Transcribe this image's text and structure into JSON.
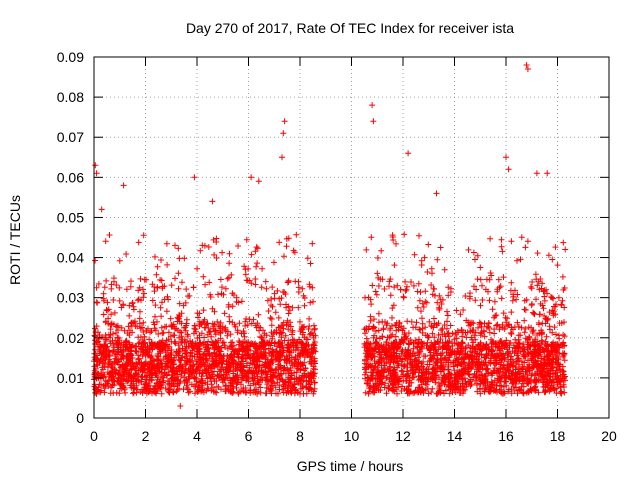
{
  "chart_data": {
    "type": "scatter",
    "title": "Day 270 of 2017, Rate Of TEC Index for receiver ista",
    "xlabel": "GPS time / hours",
    "ylabel": "ROTI / TECUs",
    "xlim": [
      0,
      20
    ],
    "ylim": [
      0,
      0.09
    ],
    "xticks": [
      0,
      2,
      4,
      6,
      8,
      10,
      12,
      14,
      16,
      18,
      20
    ],
    "xtick_labels": [
      "0",
      "2",
      "4",
      "6",
      "8",
      "10",
      "12",
      "14",
      "16",
      "18",
      "20"
    ],
    "yticks": [
      0,
      0.01,
      0.02,
      0.03,
      0.04,
      0.05,
      0.06,
      0.07,
      0.08,
      0.09
    ],
    "ytick_labels": [
      "0",
      "0.01",
      "0.02",
      "0.03",
      "0.04",
      "0.05",
      "0.06",
      "0.07",
      "0.08",
      "0.09"
    ],
    "grid": true,
    "marker": "+",
    "color": "#ff0000",
    "data_gaps_hours": [
      [
        8.6,
        10.5
      ]
    ],
    "series": [
      {
        "name": "ROTI",
        "note": "dense per-satellite ROTI samples; baseline about 0.005–0.02 TECU with spikes up to 0.088",
        "segments": [
          {
            "x_start": 0.0,
            "x_end": 8.6
          },
          {
            "x_start": 10.5,
            "x_end": 18.3
          }
        ],
        "notable_points": [
          {
            "x": 0.05,
            "y": 0.063
          },
          {
            "x": 0.1,
            "y": 0.061
          },
          {
            "x": 0.3,
            "y": 0.052
          },
          {
            "x": 1.15,
            "y": 0.058
          },
          {
            "x": 3.9,
            "y": 0.06
          },
          {
            "x": 4.6,
            "y": 0.054
          },
          {
            "x": 6.1,
            "y": 0.06
          },
          {
            "x": 6.4,
            "y": 0.059
          },
          {
            "x": 7.4,
            "y": 0.074
          },
          {
            "x": 7.35,
            "y": 0.071
          },
          {
            "x": 7.3,
            "y": 0.065
          },
          {
            "x": 10.8,
            "y": 0.078
          },
          {
            "x": 10.85,
            "y": 0.074
          },
          {
            "x": 12.2,
            "y": 0.066
          },
          {
            "x": 13.3,
            "y": 0.056
          },
          {
            "x": 16.0,
            "y": 0.065
          },
          {
            "x": 16.1,
            "y": 0.062
          },
          {
            "x": 16.8,
            "y": 0.088
          },
          {
            "x": 16.85,
            "y": 0.087
          },
          {
            "x": 17.2,
            "y": 0.061
          },
          {
            "x": 17.6,
            "y": 0.061
          },
          {
            "x": 18.3,
            "y": 0.042
          },
          {
            "x": 3.35,
            "y": 0.003
          }
        ]
      }
    ]
  }
}
